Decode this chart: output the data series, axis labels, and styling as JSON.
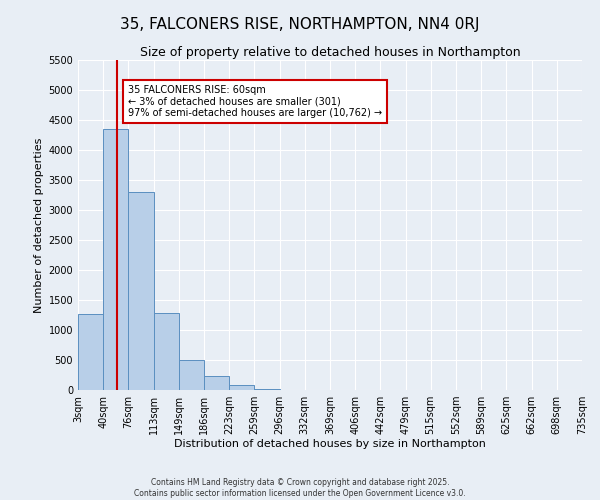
{
  "title": "35, FALCONERS RISE, NORTHAMPTON, NN4 0RJ",
  "subtitle": "Size of property relative to detached houses in Northampton",
  "xlabel": "Distribution of detached houses by size in Northampton",
  "ylabel": "Number of detached properties",
  "bar_values": [
    1270,
    4350,
    3300,
    1280,
    500,
    230,
    80,
    20,
    5,
    2,
    1,
    0,
    0,
    0,
    0,
    0,
    0,
    0,
    0,
    0
  ],
  "bin_edges": [
    3,
    40,
    76,
    113,
    149,
    186,
    223,
    259,
    296,
    332,
    369,
    406,
    442,
    479,
    515,
    552,
    589,
    625,
    662,
    698,
    735
  ],
  "tick_labels": [
    "3sqm",
    "40sqm",
    "76sqm",
    "113sqm",
    "149sqm",
    "186sqm",
    "223sqm",
    "259sqm",
    "296sqm",
    "332sqm",
    "369sqm",
    "406sqm",
    "442sqm",
    "479sqm",
    "515sqm",
    "552sqm",
    "589sqm",
    "625sqm",
    "662sqm",
    "698sqm",
    "735sqm"
  ],
  "bar_color": "#b8cfe8",
  "bar_edge_color": "#5a8fc0",
  "property_line_x": 60,
  "property_line_color": "#cc0000",
  "annotation_box_text": "35 FALCONERS RISE: 60sqm\n← 3% of detached houses are smaller (301)\n97% of semi-detached houses are larger (10,762) →",
  "annotation_box_edge_color": "#cc0000",
  "ylim": [
    0,
    5500
  ],
  "yticks": [
    0,
    500,
    1000,
    1500,
    2000,
    2500,
    3000,
    3500,
    4000,
    4500,
    5000,
    5500
  ],
  "background_color": "#e8eef5",
  "grid_color": "#ffffff",
  "footer_line1": "Contains HM Land Registry data © Crown copyright and database right 2025.",
  "footer_line2": "Contains public sector information licensed under the Open Government Licence v3.0.",
  "title_fontsize": 11,
  "subtitle_fontsize": 9,
  "axis_label_fontsize": 8,
  "tick_fontsize": 7
}
